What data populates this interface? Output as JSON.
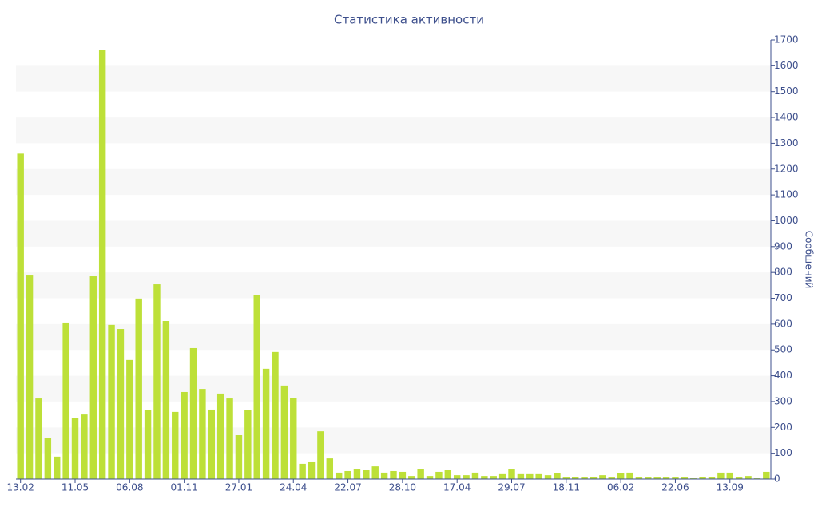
{
  "chart_data": {
    "type": "bar",
    "title": "Статистика активности",
    "y_label": "Сообщений",
    "categories": [
      "13.02",
      null,
      null,
      null,
      null,
      null,
      "11.05",
      null,
      null,
      null,
      null,
      null,
      "06.08",
      null,
      null,
      null,
      null,
      null,
      "01.11",
      null,
      null,
      null,
      null,
      null,
      "27.01",
      null,
      null,
      null,
      null,
      null,
      "24.04",
      null,
      null,
      null,
      null,
      null,
      "22.07",
      null,
      null,
      null,
      null,
      null,
      "28.10",
      null,
      null,
      null,
      null,
      null,
      "17.04",
      null,
      null,
      null,
      null,
      null,
      "29.07",
      null,
      null,
      null,
      null,
      null,
      "18.11",
      null,
      null,
      null,
      null,
      null,
      "06.02",
      null,
      null,
      null,
      null,
      null,
      "22.06",
      null,
      null,
      null,
      null,
      null,
      "13.09",
      null,
      null,
      null,
      null
    ],
    "values": [
      1260,
      788,
      312,
      158,
      87,
      606,
      235,
      250,
      785,
      1660,
      597,
      581,
      461,
      699,
      266,
      754,
      612,
      260,
      337,
      507,
      349,
      269,
      331,
      312,
      170,
      266,
      711,
      427,
      492,
      362,
      315,
      59,
      65,
      185,
      80,
      25,
      31,
      37,
      34,
      49,
      25,
      31,
      28,
      12,
      37,
      12,
      28,
      34,
      15,
      15,
      25,
      12,
      12,
      19,
      37,
      19,
      19,
      19,
      15,
      22,
      6,
      9,
      6,
      9,
      15,
      6,
      22,
      25,
      6,
      6,
      6,
      6,
      6,
      6,
      3,
      9,
      9,
      25,
      25,
      6,
      12,
      3,
      28
    ],
    "color": "#bde038",
    "ylim": [
      0,
      1700
    ],
    "yticks": [
      0,
      100,
      200,
      300,
      400,
      500,
      600,
      700,
      800,
      900,
      1000,
      1100,
      1200,
      1300,
      1400,
      1500,
      1600,
      1700
    ],
    "y_axis_side": "right",
    "grid": "alternating-bands",
    "band_color": "#f7f7f7"
  }
}
